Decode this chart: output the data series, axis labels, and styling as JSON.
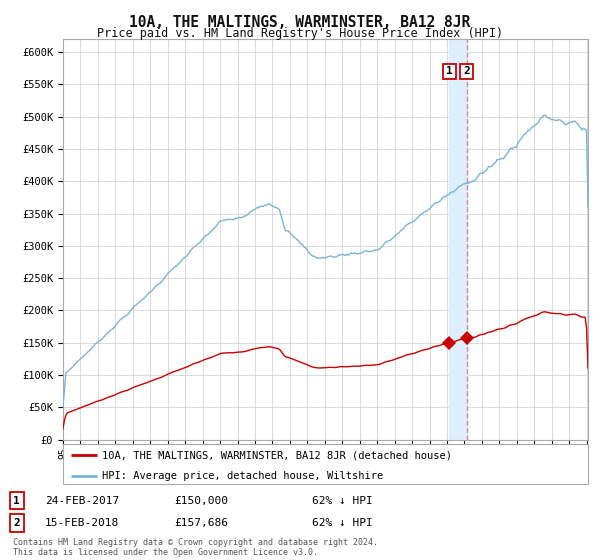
{
  "title": "10A, THE MALTINGS, WARMINSTER, BA12 8JR",
  "subtitle": "Price paid vs. HM Land Registry's House Price Index (HPI)",
  "ylabel_ticks": [
    "£0",
    "£50K",
    "£100K",
    "£150K",
    "£200K",
    "£250K",
    "£300K",
    "£350K",
    "£400K",
    "£450K",
    "£500K",
    "£550K",
    "£600K"
  ],
  "ylim": [
    0,
    620000
  ],
  "hpi_color": "#7ab4d8",
  "price_color": "#cc0000",
  "marker_color": "#cc0000",
  "vspan_color": "#ddeeff",
  "vline_color": "#e08080",
  "legend_label_red": "10A, THE MALTINGS, WARMINSTER, BA12 8JR (detached house)",
  "legend_label_blue": "HPI: Average price, detached house, Wiltshire",
  "transaction1_label": "1",
  "transaction1_date": "24-FEB-2017",
  "transaction1_price": "£150,000",
  "transaction1_hpi": "62% ↓ HPI",
  "transaction2_label": "2",
  "transaction2_date": "15-FEB-2018",
  "transaction2_price": "£157,686",
  "transaction2_hpi": "62% ↓ HPI",
  "footer": "Contains HM Land Registry data © Crown copyright and database right 2024.\nThis data is licensed under the Open Government Licence v3.0.",
  "background_color": "#ffffff",
  "grid_color": "#cccccc",
  "price1": 150000,
  "price2": 157686,
  "t1_year": 2017.14,
  "t2_year": 2018.12
}
